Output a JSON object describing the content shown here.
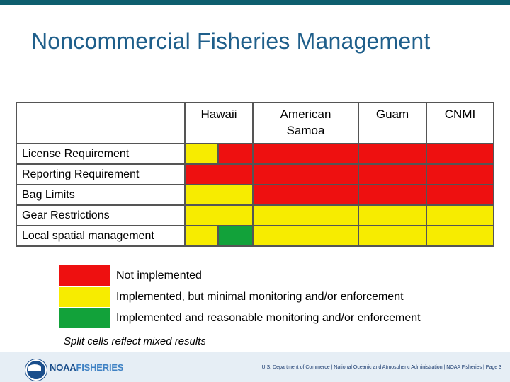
{
  "title": "Noncommercial Fisheries Management",
  "columns": [
    "Hawaii",
    "American Samoa",
    "Guam",
    "CNMI"
  ],
  "rows": [
    {
      "label": "License Requirement",
      "cells": [
        [
          "yellow",
          "red"
        ],
        [
          "red"
        ],
        [
          "red"
        ],
        [
          "red"
        ]
      ]
    },
    {
      "label": "Reporting Requirement",
      "cells": [
        [
          "red"
        ],
        [
          "red"
        ],
        [
          "red"
        ],
        [
          "red"
        ]
      ]
    },
    {
      "label": "Bag Limits",
      "cells": [
        [
          "yellow"
        ],
        [
          "red"
        ],
        [
          "red"
        ],
        [
          "red"
        ]
      ]
    },
    {
      "label": "Gear Restrictions",
      "cells": [
        [
          "yellow"
        ],
        [
          "yellow"
        ],
        [
          "yellow"
        ],
        [
          "yellow"
        ]
      ]
    },
    {
      "label": "Local spatial management",
      "cells": [
        [
          "yellow",
          "green"
        ],
        [
          "yellow"
        ],
        [
          "yellow"
        ],
        [
          "yellow"
        ]
      ]
    }
  ],
  "colors": {
    "red": "#ee1010",
    "yellow": "#f7ec00",
    "green": "#12a23a"
  },
  "legend": [
    {
      "color": "red",
      "label": "Not implemented"
    },
    {
      "color": "yellow",
      "label": "Implemented, but minimal monitoring  and/or enforcement"
    },
    {
      "color": "green",
      "label": "Implemented and reasonable monitoring and/or enforcement"
    }
  ],
  "note": "Split cells reflect mixed results",
  "footer": {
    "logo_noaa": "NOAA",
    "logo_fisheries": "FISHERIES",
    "text": "U.S. Department of Commerce  |  National Oceanic and Atmospheric Administration  |  NOAA Fisheries  |  Page 3"
  }
}
